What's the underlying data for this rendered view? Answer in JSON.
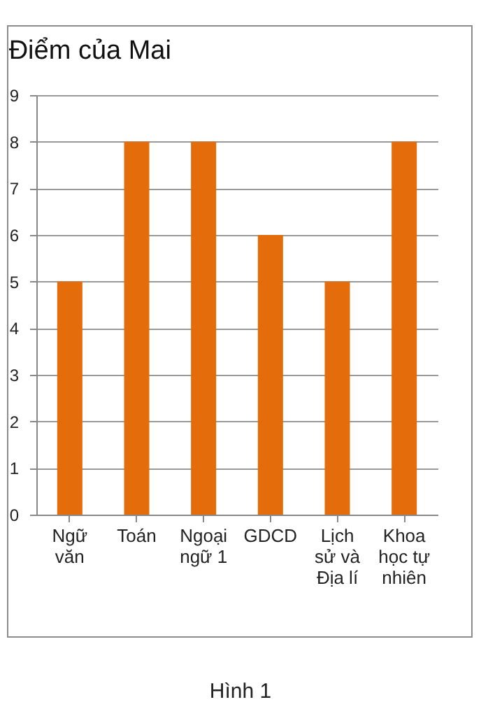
{
  "chart_data": {
    "type": "bar",
    "title": "Điểm của Mai",
    "categories": [
      "Ngữ văn",
      "Toán",
      "Ngoại ngữ 1",
      "GDCD",
      "Lịch sử và Địa lí",
      "Khoa học tự nhiên"
    ],
    "values": [
      5,
      8,
      8,
      6,
      5,
      8
    ],
    "color": "#e46c0a",
    "ylim": [
      0,
      9
    ],
    "yticks": [
      0,
      1,
      2,
      3,
      4,
      5,
      6,
      7,
      8,
      9
    ],
    "grid": "y",
    "annotations": [
      "Hình 1"
    ]
  }
}
